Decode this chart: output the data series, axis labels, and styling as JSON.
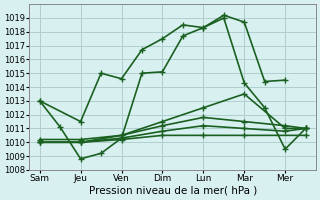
{
  "title": "",
  "xlabel": "Pression niveau de la mer( hPa )",
  "ylabel": "",
  "bg_color": "#d8f0f0",
  "grid_color": "#b0cece",
  "line_color": "#1a6020",
  "ylim": [
    1008,
    1020
  ],
  "yticks": [
    1008,
    1009,
    1010,
    1011,
    1012,
    1013,
    1014,
    1015,
    1016,
    1017,
    1018,
    1019
  ],
  "x_labels": [
    "Sam",
    "Jeu",
    "Ven",
    "Dim",
    "Lun",
    "Mar",
    "Mer"
  ],
  "x_positions": [
    0,
    2,
    4,
    6,
    8,
    10,
    12
  ],
  "lines": [
    {
      "x": [
        0,
        1,
        2,
        3,
        4,
        5,
        6,
        7,
        8,
        9,
        10,
        11,
        12,
        13
      ],
      "y": [
        1013.0,
        1011.1,
        1008.8,
        1009.2,
        1010.3,
        1015.0,
        1015.1,
        1017.7,
        1018.3,
        1019.2,
        1018.7,
        1014.4,
        1014.5,
        null
      ]
    },
    {
      "x": [
        0,
        2,
        3,
        4,
        5,
        6,
        7,
        8,
        9,
        10,
        11,
        12,
        13
      ],
      "y": [
        1013.0,
        1011.5,
        1015.0,
        1014.6,
        1016.7,
        1017.5,
        1018.5,
        1018.3,
        1019.0,
        1014.3,
        1012.5,
        1009.5,
        1011.0
      ]
    },
    {
      "x": [
        0,
        2,
        4,
        6,
        8,
        10,
        12,
        13
      ],
      "y": [
        1010.2,
        1010.2,
        1010.5,
        1011.5,
        1012.5,
        1013.5,
        1011.0,
        1011.0
      ]
    },
    {
      "x": [
        0,
        2,
        4,
        6,
        8,
        10,
        12,
        13
      ],
      "y": [
        1010.0,
        1010.0,
        1010.5,
        1011.2,
        1011.8,
        1011.5,
        1011.2,
        1011.0
      ]
    },
    {
      "x": [
        0,
        2,
        4,
        6,
        8,
        10,
        12,
        13
      ],
      "y": [
        1010.0,
        1010.0,
        1010.3,
        1010.8,
        1011.2,
        1011.0,
        1010.8,
        1011.0
      ]
    },
    {
      "x": [
        0,
        2,
        4,
        6,
        8,
        10,
        13
      ],
      "y": [
        1010.0,
        1010.0,
        1010.2,
        1010.5,
        1010.5,
        1010.5,
        1010.5
      ]
    }
  ],
  "marker": "+",
  "markersize": 5,
  "linewidth": 1.2
}
